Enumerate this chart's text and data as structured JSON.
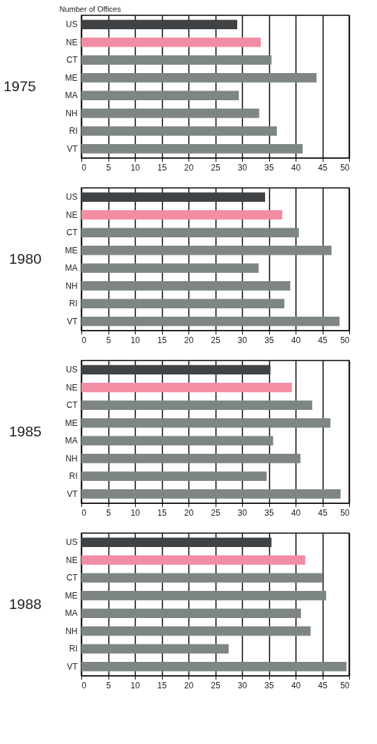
{
  "chart_data": [
    {
      "type": "bar",
      "orientation": "horizontal",
      "title": "1975",
      "ylabel": "Number of Offices",
      "categories": [
        "US",
        "NE",
        "CT",
        "ME",
        "MA",
        "NH",
        "RI",
        "VT"
      ],
      "values": [
        29.1,
        33.5,
        35.5,
        43.9,
        29.4,
        33.2,
        36.5,
        41.3
      ],
      "colors": [
        "#404346",
        "#f28da3",
        "#7e8684",
        "#7e8684",
        "#7e8684",
        "#7e8684",
        "#7e8684",
        "#7e8684"
      ],
      "xlim": [
        0,
        50
      ],
      "xticks": [
        0,
        5,
        10,
        15,
        20,
        25,
        30,
        35,
        40,
        45,
        50
      ],
      "grid": "x"
    },
    {
      "type": "bar",
      "orientation": "horizontal",
      "title": "1980",
      "categories": [
        "US",
        "NE",
        "CT",
        "ME",
        "MA",
        "NH",
        "RI",
        "VT"
      ],
      "values": [
        34.3,
        37.5,
        40.6,
        46.7,
        33.1,
        39.0,
        37.9,
        48.2
      ],
      "colors": [
        "#404346",
        "#f28da3",
        "#7e8684",
        "#7e8684",
        "#7e8684",
        "#7e8684",
        "#7e8684",
        "#7e8684"
      ],
      "xlim": [
        0,
        50
      ],
      "xticks": [
        0,
        5,
        10,
        15,
        20,
        25,
        30,
        35,
        40,
        45,
        50
      ],
      "grid": "x"
    },
    {
      "type": "bar",
      "orientation": "horizontal",
      "title": "1985",
      "categories": [
        "US",
        "NE",
        "CT",
        "ME",
        "MA",
        "NH",
        "RI",
        "VT"
      ],
      "values": [
        35.3,
        39.3,
        43.1,
        46.5,
        35.8,
        40.9,
        34.6,
        48.4
      ],
      "colors": [
        "#404346",
        "#f28da3",
        "#7e8684",
        "#7e8684",
        "#7e8684",
        "#7e8684",
        "#7e8684",
        "#7e8684"
      ],
      "xlim": [
        0,
        50
      ],
      "xticks": [
        0,
        5,
        10,
        15,
        20,
        25,
        30,
        35,
        40,
        45,
        50
      ],
      "grid": "x"
    },
    {
      "type": "bar",
      "orientation": "horizontal",
      "title": "1988",
      "categories": [
        "US",
        "NE",
        "CT",
        "ME",
        "MA",
        "NH",
        "RI",
        "VT"
      ],
      "values": [
        35.5,
        41.8,
        45.0,
        45.7,
        41.0,
        42.8,
        27.5,
        49.5
      ],
      "colors": [
        "#404346",
        "#f28da3",
        "#7e8684",
        "#7e8684",
        "#7e8684",
        "#7e8684",
        "#7e8684",
        "#7e8684"
      ],
      "xlim": [
        0,
        50
      ],
      "xticks": [
        0,
        5,
        10,
        15,
        20,
        25,
        30,
        35,
        40,
        45,
        50
      ],
      "grid": "x"
    }
  ]
}
